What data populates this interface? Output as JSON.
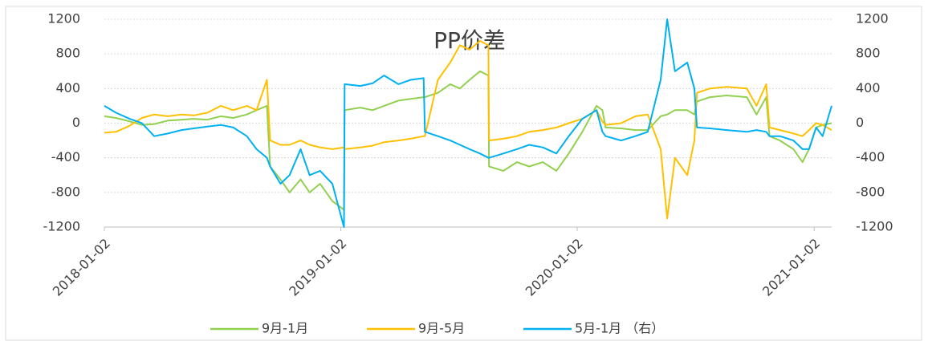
{
  "chart_data": {
    "type": "line",
    "title": "PP价差",
    "x": [
      "2018-01-02",
      "2018-01-20",
      "2018-02-10",
      "2018-03-01",
      "2018-03-20",
      "2018-04-10",
      "2018-05-01",
      "2018-05-20",
      "2018-06-10",
      "2018-07-01",
      "2018-07-20",
      "2018-08-10",
      "2018-08-25",
      "2018-09-10",
      "2018-09-15",
      "2018-10-01",
      "2018-10-15",
      "2018-11-01",
      "2018-11-15",
      "2018-12-01",
      "2018-12-20",
      "2019-01-07",
      "2019-01-08",
      "2019-02-01",
      "2019-02-20",
      "2019-03-10",
      "2019-04-01",
      "2019-04-20",
      "2019-05-10",
      "2019-05-12",
      "2019-06-01",
      "2019-06-20",
      "2019-07-05",
      "2019-07-20",
      "2019-08-05",
      "2019-08-18",
      "2019-08-19",
      "2019-09-10",
      "2019-10-01",
      "2019-10-20",
      "2019-11-10",
      "2019-12-01",
      "2019-12-20",
      "2020-01-10",
      "2020-02-01",
      "2020-02-10",
      "2020-02-15",
      "2020-03-10",
      "2020-04-01",
      "2020-04-20",
      "2020-05-10",
      "2020-05-20",
      "2020-06-01",
      "2020-06-20",
      "2020-07-01",
      "2020-07-05",
      "2020-07-25",
      "2020-08-20",
      "2020-09-20",
      "2020-10-05",
      "2020-10-20",
      "2020-10-25",
      "2020-11-10",
      "2020-12-01",
      "2020-12-15",
      "2020-12-25",
      "2021-01-05",
      "2021-01-15",
      "2021-01-29"
    ],
    "series": [
      {
        "name": "9月-1月",
        "color": "#92d050",
        "axis": "y",
        "values": [
          80,
          60,
          20,
          -20,
          -10,
          30,
          40,
          50,
          40,
          80,
          60,
          100,
          150,
          200,
          -500,
          -650,
          -800,
          -650,
          -800,
          -700,
          -900,
          -1000,
          150,
          180,
          150,
          200,
          260,
          280,
          300,
          300,
          350,
          450,
          400,
          500,
          600,
          550,
          -500,
          -550,
          -450,
          -500,
          -450,
          -550,
          -350,
          -100,
          200,
          150,
          -50,
          -60,
          -80,
          -80,
          80,
          100,
          150,
          150,
          100,
          250,
          300,
          320,
          300,
          100,
          300,
          -150,
          -200,
          -300,
          -450,
          -300,
          -50,
          -20,
          0
        ]
      },
      {
        "name": "9月-5月",
        "color": "#ffc000",
        "axis": "y",
        "values": [
          -110,
          -100,
          -30,
          60,
          100,
          80,
          100,
          90,
          120,
          200,
          150,
          200,
          150,
          500,
          -200,
          -250,
          -250,
          -200,
          -250,
          -280,
          -300,
          -280,
          -300,
          -280,
          -260,
          -220,
          -200,
          -180,
          -150,
          -150,
          500,
          700,
          900,
          850,
          950,
          900,
          -200,
          -180,
          -150,
          -100,
          -80,
          -50,
          0,
          50,
          150,
          20,
          -20,
          0,
          80,
          100,
          -300,
          -1100,
          -400,
          -600,
          -200,
          350,
          400,
          420,
          400,
          200,
          450,
          -50,
          -80,
          -120,
          -150,
          -80,
          0,
          -20,
          -80
        ]
      },
      {
        "name": "5月-1月 （右）",
        "color": "#00b0f0",
        "axis": "y2",
        "values": [
          200,
          120,
          50,
          0,
          -150,
          -120,
          -80,
          -60,
          -40,
          -20,
          -50,
          -150,
          -300,
          -400,
          -500,
          -700,
          -600,
          -300,
          -600,
          -550,
          -700,
          -1200,
          450,
          430,
          460,
          550,
          450,
          500,
          520,
          -100,
          -150,
          -200,
          -250,
          -300,
          -350,
          -400,
          -400,
          -350,
          -300,
          -250,
          -280,
          -350,
          -150,
          50,
          150,
          -100,
          -150,
          -200,
          -150,
          -100,
          500,
          1200,
          600,
          700,
          400,
          -50,
          -60,
          -80,
          -100,
          -80,
          -100,
          -150,
          -150,
          -200,
          -300,
          -300,
          -50,
          -150,
          200
        ]
      }
    ],
    "xlim": [
      "2018-01-02",
      "2021-01-29"
    ],
    "xticks": [
      "2018-01-02",
      "2019-01-02",
      "2020-01-02",
      "2021-01-02"
    ],
    "ylim": [
      -1200,
      1200
    ],
    "yticks": [
      -1200,
      -800,
      -400,
      0,
      400,
      800,
      1200
    ],
    "y2lim": [
      -1200,
      1200
    ],
    "y2ticks": [
      -1200,
      -800,
      -400,
      0,
      400,
      800,
      1200
    ],
    "grid": true,
    "legend": "bottom"
  }
}
